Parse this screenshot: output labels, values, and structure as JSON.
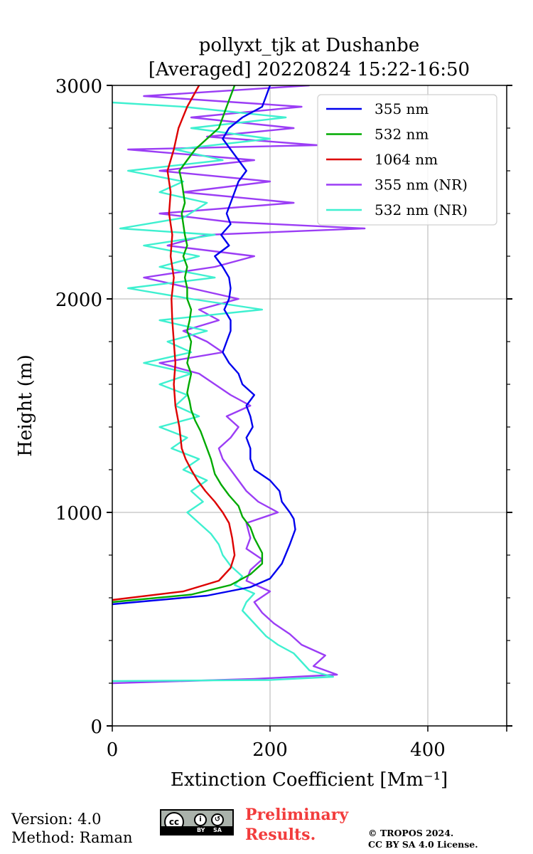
{
  "chart_data": {
    "type": "line",
    "title_line1": "pollyxt_tjk at Dushanbe",
    "title_line2": "[Averaged] 20220824 15:22-16:50",
    "xlabel": "Extinction Coefficient [Mm⁻¹]",
    "ylabel": "Height (m)",
    "xlim": [
      0,
      500
    ],
    "ylim": [
      0,
      3000
    ],
    "xticks": [
      0,
      200,
      400
    ],
    "yticks": [
      0,
      1000,
      2000,
      3000
    ],
    "grid": true,
    "legend_position": "top-right",
    "series": [
      {
        "name": "355 nm",
        "color": "#0000ee",
        "points": [
          [
            0,
            570
          ],
          [
            120,
            610
          ],
          [
            175,
            650
          ],
          [
            200,
            690
          ],
          [
            215,
            760
          ],
          [
            225,
            850
          ],
          [
            232,
            920
          ],
          [
            230,
            970
          ],
          [
            225,
            1000
          ],
          [
            215,
            1050
          ],
          [
            212,
            1100
          ],
          [
            200,
            1150
          ],
          [
            180,
            1200
          ],
          [
            175,
            1250
          ],
          [
            175,
            1300
          ],
          [
            170,
            1350
          ],
          [
            178,
            1400
          ],
          [
            175,
            1450
          ],
          [
            170,
            1500
          ],
          [
            180,
            1550
          ],
          [
            165,
            1600
          ],
          [
            160,
            1650
          ],
          [
            148,
            1700
          ],
          [
            140,
            1750
          ],
          [
            145,
            1800
          ],
          [
            150,
            1850
          ],
          [
            150,
            1900
          ],
          [
            142,
            1950
          ],
          [
            148,
            2000
          ],
          [
            150,
            2050
          ],
          [
            148,
            2100
          ],
          [
            140,
            2150
          ],
          [
            130,
            2200
          ],
          [
            148,
            2250
          ],
          [
            138,
            2300
          ],
          [
            150,
            2350
          ],
          [
            145,
            2400
          ],
          [
            150,
            2450
          ],
          [
            155,
            2500
          ],
          [
            160,
            2550
          ],
          [
            170,
            2600
          ],
          [
            160,
            2650
          ],
          [
            150,
            2700
          ],
          [
            140,
            2750
          ],
          [
            148,
            2800
          ],
          [
            165,
            2850
          ],
          [
            190,
            2900
          ],
          [
            195,
            2950
          ],
          [
            200,
            3000
          ]
        ]
      },
      {
        "name": "532 nm",
        "color": "#00aa00",
        "points": [
          [
            0,
            580
          ],
          [
            100,
            615
          ],
          [
            150,
            660
          ],
          [
            175,
            710
          ],
          [
            190,
            760
          ],
          [
            190,
            810
          ],
          [
            180,
            880
          ],
          [
            175,
            930
          ],
          [
            165,
            980
          ],
          [
            160,
            1030
          ],
          [
            148,
            1080
          ],
          [
            138,
            1130
          ],
          [
            130,
            1180
          ],
          [
            125,
            1250
          ],
          [
            118,
            1320
          ],
          [
            112,
            1380
          ],
          [
            105,
            1430
          ],
          [
            100,
            1480
          ],
          [
            98,
            1520
          ],
          [
            95,
            1560
          ],
          [
            97,
            1600
          ],
          [
            100,
            1650
          ],
          [
            95,
            1700
          ],
          [
            98,
            1750
          ],
          [
            100,
            1800
          ],
          [
            95,
            1850
          ],
          [
            98,
            1900
          ],
          [
            100,
            1950
          ],
          [
            95,
            2000
          ],
          [
            95,
            2050
          ],
          [
            92,
            2100
          ],
          [
            95,
            2150
          ],
          [
            90,
            2200
          ],
          [
            95,
            2250
          ],
          [
            92,
            2300
          ],
          [
            90,
            2350
          ],
          [
            88,
            2400
          ],
          [
            92,
            2450
          ],
          [
            90,
            2500
          ],
          [
            88,
            2550
          ],
          [
            85,
            2600
          ],
          [
            95,
            2650
          ],
          [
            105,
            2700
          ],
          [
            120,
            2750
          ],
          [
            135,
            2800
          ],
          [
            140,
            2850
          ],
          [
            145,
            2900
          ],
          [
            150,
            2950
          ],
          [
            155,
            3000
          ]
        ]
      },
      {
        "name": "1064 nm",
        "color": "#dd0000",
        "points": [
          [
            0,
            590
          ],
          [
            90,
            630
          ],
          [
            135,
            680
          ],
          [
            150,
            740
          ],
          [
            155,
            800
          ],
          [
            152,
            880
          ],
          [
            148,
            950
          ],
          [
            140,
            1000
          ],
          [
            130,
            1050
          ],
          [
            118,
            1100
          ],
          [
            108,
            1150
          ],
          [
            100,
            1200
          ],
          [
            93,
            1250
          ],
          [
            88,
            1300
          ],
          [
            85,
            1400
          ],
          [
            80,
            1500
          ],
          [
            78,
            1600
          ],
          [
            80,
            1700
          ],
          [
            78,
            1800
          ],
          [
            76,
            1900
          ],
          [
            75,
            2000
          ],
          [
            78,
            2100
          ],
          [
            74,
            2200
          ],
          [
            76,
            2300
          ],
          [
            72,
            2400
          ],
          [
            74,
            2500
          ],
          [
            70,
            2600
          ],
          [
            78,
            2700
          ],
          [
            84,
            2800
          ],
          [
            95,
            2900
          ],
          [
            110,
            3000
          ]
        ]
      },
      {
        "name": "355 nm (NR)",
        "color": "#9b3df5",
        "points": [
          [
            0,
            200
          ],
          [
            180,
            220
          ],
          [
            285,
            240
          ],
          [
            255,
            280
          ],
          [
            270,
            330
          ],
          [
            240,
            380
          ],
          [
            225,
            430
          ],
          [
            205,
            480
          ],
          [
            190,
            530
          ],
          [
            180,
            580
          ],
          [
            200,
            630
          ],
          [
            170,
            680
          ],
          [
            175,
            730
          ],
          [
            190,
            780
          ],
          [
            170,
            830
          ],
          [
            175,
            880
          ],
          [
            170,
            950
          ],
          [
            210,
            1000
          ],
          [
            185,
            1050
          ],
          [
            170,
            1100
          ],
          [
            160,
            1150
          ],
          [
            150,
            1200
          ],
          [
            140,
            1250
          ],
          [
            135,
            1300
          ],
          [
            150,
            1350
          ],
          [
            160,
            1400
          ],
          [
            145,
            1450
          ],
          [
            175,
            1500
          ],
          [
            150,
            1550
          ],
          [
            130,
            1600
          ],
          [
            110,
            1650
          ],
          [
            60,
            1700
          ],
          [
            140,
            1750
          ],
          [
            120,
            1800
          ],
          [
            90,
            1850
          ],
          [
            135,
            1900
          ],
          [
            110,
            1950
          ],
          [
            160,
            2000
          ],
          [
            100,
            2050
          ],
          [
            40,
            2100
          ],
          [
            130,
            2150
          ],
          [
            180,
            2200
          ],
          [
            70,
            2250
          ],
          [
            120,
            2300
          ],
          [
            320,
            2330
          ],
          [
            150,
            2360
          ],
          [
            60,
            2400
          ],
          [
            230,
            2450
          ],
          [
            90,
            2500
          ],
          [
            200,
            2550
          ],
          [
            60,
            2600
          ],
          [
            180,
            2650
          ],
          [
            20,
            2700
          ],
          [
            260,
            2720
          ],
          [
            120,
            2760
          ],
          [
            230,
            2800
          ],
          [
            100,
            2850
          ],
          [
            240,
            2900
          ],
          [
            40,
            2950
          ],
          [
            250,
            3000
          ]
        ]
      },
      {
        "name": "532 nm (NR)",
        "color": "#3ff0d0",
        "points": [
          [
            0,
            210
          ],
          [
            200,
            215
          ],
          [
            280,
            230
          ],
          [
            250,
            260
          ],
          [
            240,
            300
          ],
          [
            230,
            340
          ],
          [
            210,
            380
          ],
          [
            195,
            420
          ],
          [
            185,
            460
          ],
          [
            175,
            500
          ],
          [
            165,
            540
          ],
          [
            170,
            580
          ],
          [
            180,
            620
          ],
          [
            155,
            660
          ],
          [
            165,
            700
          ],
          [
            150,
            750
          ],
          [
            140,
            800
          ],
          [
            135,
            850
          ],
          [
            125,
            900
          ],
          [
            110,
            950
          ],
          [
            95,
            1000
          ],
          [
            115,
            1050
          ],
          [
            100,
            1100
          ],
          [
            120,
            1150
          ],
          [
            90,
            1200
          ],
          [
            110,
            1250
          ],
          [
            75,
            1300
          ],
          [
            95,
            1350
          ],
          [
            60,
            1400
          ],
          [
            110,
            1450
          ],
          [
            80,
            1500
          ],
          [
            95,
            1550
          ],
          [
            60,
            1600
          ],
          [
            100,
            1650
          ],
          [
            40,
            1700
          ],
          [
            100,
            1750
          ],
          [
            70,
            1800
          ],
          [
            120,
            1850
          ],
          [
            60,
            1900
          ],
          [
            190,
            1950
          ],
          [
            100,
            2000
          ],
          [
            20,
            2050
          ],
          [
            130,
            2100
          ],
          [
            60,
            2150
          ],
          [
            110,
            2200
          ],
          [
            40,
            2250
          ],
          [
            130,
            2300
          ],
          [
            10,
            2330
          ],
          [
            90,
            2380
          ],
          [
            120,
            2450
          ],
          [
            60,
            2500
          ],
          [
            90,
            2550
          ],
          [
            20,
            2600
          ],
          [
            140,
            2650
          ],
          [
            80,
            2700
          ],
          [
            200,
            2750
          ],
          [
            100,
            2800
          ],
          [
            220,
            2850
          ],
          [
            90,
            2900
          ],
          [
            0,
            2920
          ]
        ]
      }
    ]
  },
  "footer": {
    "version": "Version: 4.0",
    "method": "Method: Raman",
    "prelim_line1": "Preliminary",
    "prelim_line2": "Results.",
    "copyright_line1": "© TROPOS 2024.",
    "copyright_line2": "CC BY SA 4.0 License.",
    "license_badge": {
      "cc": "cc",
      "by": "BY",
      "sa": "SA"
    }
  }
}
